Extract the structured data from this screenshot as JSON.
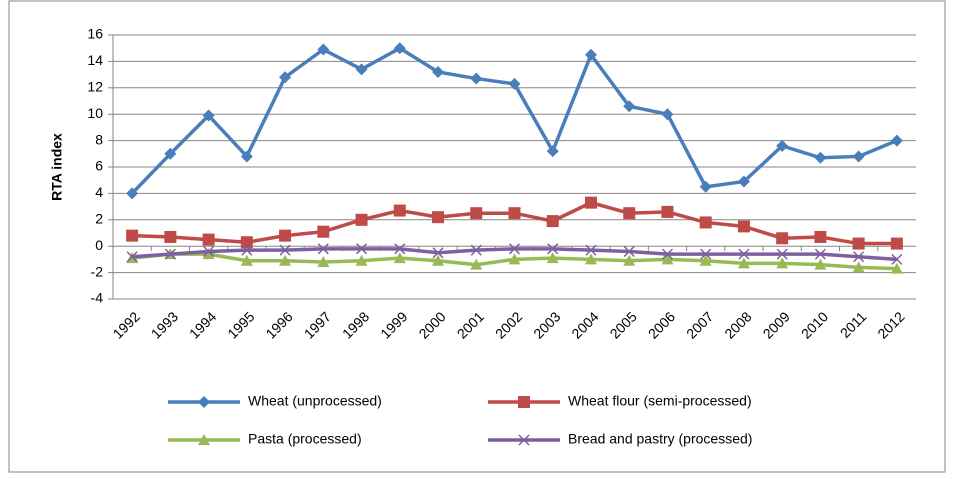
{
  "chart_data": {
    "type": "line",
    "ylabel": "RTA index",
    "categories": [
      "1992",
      "1993",
      "1994",
      "1995",
      "1996",
      "1997",
      "1998",
      "1999",
      "2000",
      "2001",
      "2002",
      "2003",
      "2004",
      "2005",
      "2006",
      "2007",
      "2008",
      "2009",
      "2010",
      "2011",
      "2012"
    ],
    "series": [
      {
        "name": "Wheat (unprocessed)",
        "color": "#4a7ebb",
        "marker": "diamond",
        "values": [
          4.0,
          7.0,
          9.9,
          6.8,
          12.8,
          14.9,
          13.4,
          15.0,
          13.2,
          12.7,
          12.3,
          7.2,
          14.5,
          10.6,
          10.0,
          4.5,
          4.9,
          7.6,
          6.7,
          6.8,
          8.0
        ]
      },
      {
        "name": "Wheat flour (semi-processed)",
        "color": "#be4b48",
        "marker": "square",
        "values": [
          0.8,
          0.7,
          0.5,
          0.3,
          0.8,
          1.1,
          2.0,
          2.7,
          2.2,
          2.5,
          2.5,
          1.9,
          3.3,
          2.5,
          2.6,
          1.8,
          1.5,
          0.6,
          0.7,
          0.2,
          0.2
        ]
      },
      {
        "name": "Pasta (processed)",
        "color": "#98b954",
        "marker": "triangle",
        "values": [
          -0.9,
          -0.6,
          -0.6,
          -1.1,
          -1.1,
          -1.2,
          -1.1,
          -0.9,
          -1.1,
          -1.4,
          -1.0,
          -0.9,
          -1.0,
          -1.1,
          -1.0,
          -1.1,
          -1.3,
          -1.3,
          -1.4,
          -1.6,
          -1.7
        ]
      },
      {
        "name": "Bread and pastry (processed)",
        "color": "#7d60a0",
        "marker": "x",
        "values": [
          -0.8,
          -0.6,
          -0.4,
          -0.3,
          -0.3,
          -0.2,
          -0.2,
          -0.2,
          -0.5,
          -0.3,
          -0.2,
          -0.2,
          -0.3,
          -0.4,
          -0.6,
          -0.6,
          -0.6,
          -0.6,
          -0.6,
          -0.8,
          -1.0
        ]
      }
    ],
    "ylim": [
      -4,
      16
    ],
    "yticks": [
      -4,
      -2,
      0,
      2,
      4,
      6,
      8,
      10,
      12,
      14,
      16
    ],
    "grid": true,
    "legend": "bottom"
  }
}
